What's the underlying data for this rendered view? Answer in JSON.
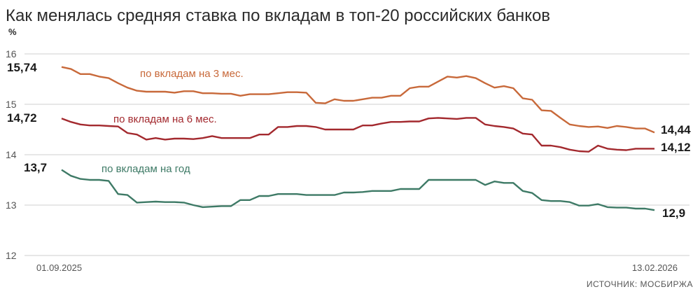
{
  "chart_data": {
    "type": "line",
    "title": "Как менялась средняя ставка по вкладам в топ-20 российских банков",
    "unit_label": "%",
    "yticks": [
      "16",
      "15",
      "14",
      "13",
      "12"
    ],
    "ylim": [
      12,
      16
    ],
    "x_start_label": "01.09.2025",
    "x_end_label": "13.02.2026",
    "grid": true,
    "source": "ИСТОЧНИК: МОСБИРЖА",
    "series": [
      {
        "name": "по вкладам на 3 мес.",
        "color": "#c8693a",
        "start_label": "15,74",
        "end_label": "14,44",
        "values": [
          15.74,
          15.7,
          15.6,
          15.6,
          15.55,
          15.52,
          15.42,
          15.33,
          15.27,
          15.25,
          15.25,
          15.25,
          15.23,
          15.26,
          15.26,
          15.22,
          15.22,
          15.21,
          15.21,
          15.17,
          15.2,
          15.2,
          15.2,
          15.22,
          15.24,
          15.24,
          15.23,
          15.03,
          15.02,
          15.1,
          15.07,
          15.07,
          15.1,
          15.13,
          15.13,
          15.17,
          15.17,
          15.32,
          15.35,
          15.35,
          15.45,
          15.55,
          15.53,
          15.56,
          15.52,
          15.42,
          15.33,
          15.36,
          15.32,
          15.12,
          15.09,
          14.88,
          14.87,
          14.73,
          14.6,
          14.57,
          14.55,
          14.56,
          14.53,
          14.57,
          14.55,
          14.52,
          14.52,
          14.44
        ]
      },
      {
        "name": "по вкладам на 6 мес.",
        "color": "#a3292e",
        "start_label": "14,72",
        "end_label": "14,12",
        "values": [
          14.72,
          14.65,
          14.6,
          14.58,
          14.58,
          14.57,
          14.56,
          14.43,
          14.4,
          14.3,
          14.33,
          14.3,
          14.32,
          14.32,
          14.31,
          14.33,
          14.37,
          14.33,
          14.33,
          14.33,
          14.33,
          14.4,
          14.4,
          14.55,
          14.55,
          14.57,
          14.57,
          14.55,
          14.5,
          14.5,
          14.5,
          14.5,
          14.58,
          14.58,
          14.62,
          14.65,
          14.65,
          14.66,
          14.66,
          14.72,
          14.73,
          14.72,
          14.71,
          14.73,
          14.73,
          14.6,
          14.57,
          14.55,
          14.52,
          14.42,
          14.4,
          14.18,
          14.18,
          14.15,
          14.1,
          14.07,
          14.06,
          14.18,
          14.12,
          14.1,
          14.09,
          14.12,
          14.12,
          14.12
        ]
      },
      {
        "name": "по вкладам на год",
        "color": "#3e7a66",
        "start_label": "13,7",
        "end_label": "12,9",
        "values": [
          13.7,
          13.58,
          13.52,
          13.5,
          13.5,
          13.48,
          13.22,
          13.2,
          13.05,
          13.06,
          13.07,
          13.06,
          13.06,
          13.05,
          13.0,
          12.96,
          12.97,
          12.98,
          12.98,
          13.1,
          13.1,
          13.18,
          13.18,
          13.22,
          13.22,
          13.22,
          13.2,
          13.2,
          13.2,
          13.2,
          13.25,
          13.25,
          13.26,
          13.28,
          13.28,
          13.28,
          13.32,
          13.32,
          13.32,
          13.5,
          13.5,
          13.5,
          13.5,
          13.5,
          13.5,
          13.4,
          13.47,
          13.44,
          13.44,
          13.28,
          13.24,
          13.1,
          13.08,
          13.08,
          13.06,
          12.99,
          12.99,
          13.02,
          12.96,
          12.95,
          12.95,
          12.93,
          12.93,
          12.9
        ]
      }
    ]
  }
}
